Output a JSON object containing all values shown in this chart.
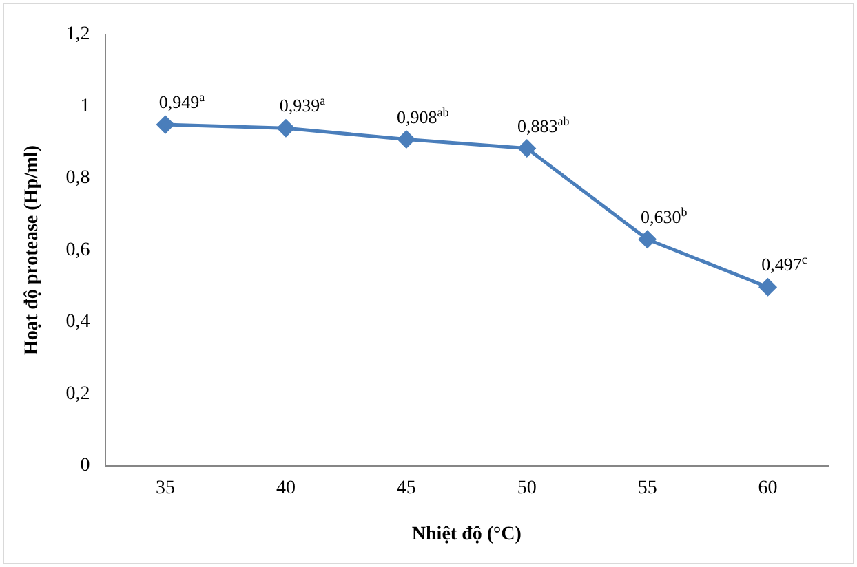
{
  "chart_data": {
    "type": "line",
    "xlabel": "Nhiệt độ (°C)",
    "ylabel": "Hoạt độ protease (Hp/ml)",
    "categories": [
      "35",
      "40",
      "45",
      "50",
      "55",
      "60"
    ],
    "series": [
      {
        "color": "#4a7ebb",
        "values": [
          0.949,
          0.939,
          0.908,
          0.883,
          0.63,
          0.497
        ],
        "value_labels": [
          "0,949$^{a}$",
          "0,939$^{a}$",
          "0,908$^{ab}$",
          "0,883$^{ab}$",
          "0,630$^{b}$",
          "0,497$^{c}$"
        ]
      }
    ],
    "ylim": [
      0,
      1.2
    ],
    "yticks": [
      {
        "value": 0,
        "label": "0"
      },
      {
        "value": 0.2,
        "label": "0,2"
      },
      {
        "value": 0.4,
        "label": "0,4"
      },
      {
        "value": 0.6,
        "label": "0,6"
      },
      {
        "value": 0.8,
        "label": "0,8"
      },
      {
        "value": 1,
        "label": "1"
      },
      {
        "value": 1.2,
        "label": "1,2"
      }
    ],
    "grid": false,
    "legend": false,
    "marker": "diamond",
    "line_style": "solid"
  }
}
